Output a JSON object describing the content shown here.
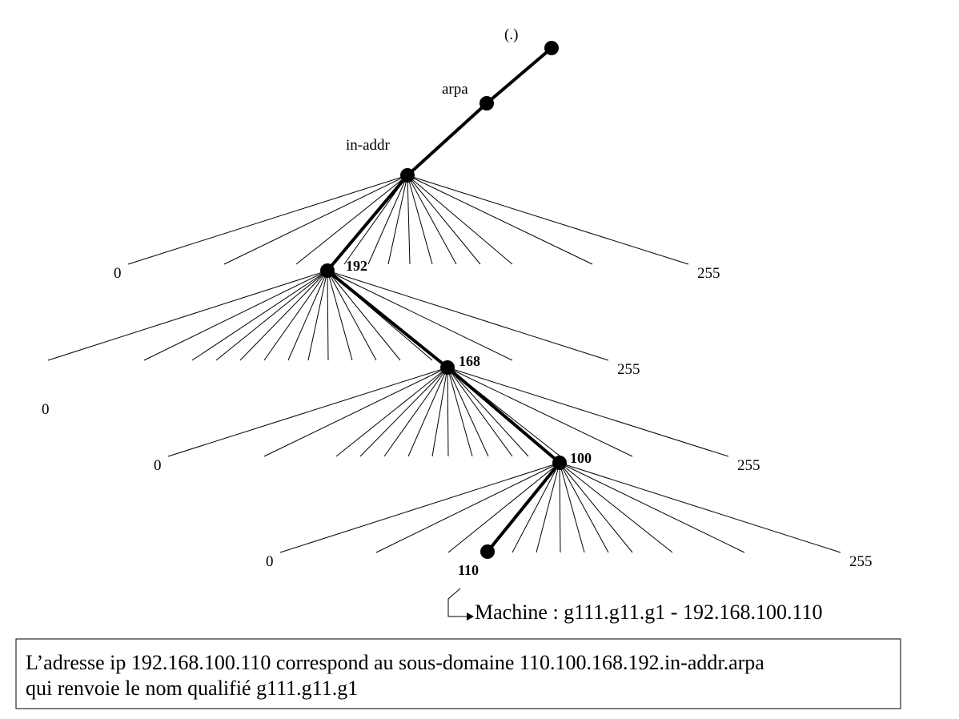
{
  "nodes": [
    {
      "label": "(.)"
    },
    {
      "label": "arpa"
    },
    {
      "label": "in-addr"
    },
    {
      "label": "192"
    },
    {
      "label": "168"
    },
    {
      "label": "100"
    },
    {
      "label": "110"
    }
  ],
  "ranges": [
    {
      "first": "0",
      "last": "255"
    },
    {
      "first": "0",
      "last": "255"
    },
    {
      "first": "0",
      "last": "255"
    },
    {
      "first": "0",
      "last": "255"
    }
  ],
  "machine": "Machine : g111.g11.g1 - 192.168.100.110",
  "note": {
    "lines": [
      "L’adresse ip 192.168.100.110 correspond au sous-domaine 110.100.168.192.in-addr.arpa",
      "qui renvoie le nom qualifié g111.g11.g1"
    ]
  }
}
